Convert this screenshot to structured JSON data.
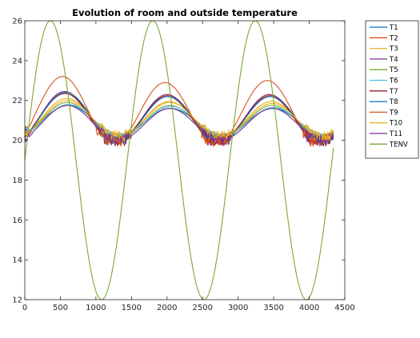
{
  "chart_data": {
    "type": "line",
    "title": "Evolution of room and outside temperature",
    "xlabel": "",
    "ylabel": "",
    "xlim": [
      0,
      4500
    ],
    "ylim": [
      12,
      26
    ],
    "xticks": [
      0,
      500,
      1000,
      1500,
      2000,
      2500,
      3000,
      3500,
      4000,
      4500
    ],
    "yticks": [
      12,
      14,
      16,
      18,
      20,
      22,
      24,
      26
    ],
    "grid": false,
    "legend_position": "outside-top-right",
    "x_end": 4340,
    "period": 1440,
    "series": [
      {
        "name": "T1",
        "color": "#0072BD",
        "peaks": [
          21.75,
          21.6,
          21.6
        ],
        "troughs": [
          20.3,
          20.3,
          20.3
        ],
        "phase": 610,
        "base": 20.5,
        "noise": 0.0
      },
      {
        "name": "T2",
        "color": "#D95319",
        "peaks": [
          22.4,
          22.25,
          22.25
        ],
        "troughs": [
          20.0,
          20.0,
          20.0
        ],
        "phase": 570,
        "base": 20.45,
        "noise": 0.5
      },
      {
        "name": "T3",
        "color": "#EDB120",
        "peaks": [
          22.1,
          21.95,
          21.95
        ],
        "troughs": [
          20.1,
          20.1,
          20.1
        ],
        "phase": 590,
        "base": 20.4,
        "noise": 0.55
      },
      {
        "name": "T4",
        "color": "#7E2F8E",
        "peaks": [
          22.45,
          22.3,
          22.3
        ],
        "troughs": [
          19.8,
          19.8,
          19.8
        ],
        "phase": 560,
        "base": 20.2,
        "noise": 0.5
      },
      {
        "name": "T5",
        "color": "#77AC30",
        "peaks": [
          21.9,
          21.75,
          21.75
        ],
        "troughs": [
          20.1,
          20.1,
          20.1
        ],
        "phase": 600,
        "base": 20.6,
        "noise": 0.3
      },
      {
        "name": "T6",
        "color": "#4DBEEE",
        "peaks": [
          21.8,
          21.7,
          21.65
        ],
        "troughs": [
          20.2,
          20.2,
          20.2
        ],
        "phase": 620,
        "base": 20.6,
        "noise": 0.2
      },
      {
        "name": "T7",
        "color": "#A2142F",
        "peaks": [
          22.35,
          22.2,
          22.2
        ],
        "troughs": [
          19.9,
          19.9,
          19.9
        ],
        "phase": 565,
        "base": 20.4,
        "noise": 0.5
      },
      {
        "name": "T8",
        "color": "#0072BD",
        "peaks": [
          22.4,
          22.2,
          22.2
        ],
        "troughs": [
          19.95,
          19.95,
          19.95
        ],
        "phase": 575,
        "base": 20.55,
        "noise": 0.45
      },
      {
        "name": "T9",
        "color": "#D95319",
        "peaks": [
          23.2,
          22.9,
          23.0
        ],
        "troughs": [
          19.8,
          19.8,
          19.8
        ],
        "phase": 530,
        "base": 20.7,
        "noise": 0.55
      },
      {
        "name": "T10",
        "color": "#EDB120",
        "peaks": [
          22.0,
          21.9,
          21.85
        ],
        "troughs": [
          20.15,
          20.15,
          20.15
        ],
        "phase": 600,
        "base": 20.45,
        "noise": 0.5
      },
      {
        "name": "T11",
        "color": "#7E2F8E",
        "peaks": [
          21.75,
          21.6,
          21.6
        ],
        "troughs": [
          20.0,
          20.0,
          20.0
        ],
        "phase": 600,
        "base": 20.1,
        "noise": 0.35
      },
      {
        "name": "TENV",
        "color": "#77AC30",
        "mean": 19.0,
        "amplitude": 7.0,
        "phase": 360,
        "start": 19.0
      }
    ]
  }
}
